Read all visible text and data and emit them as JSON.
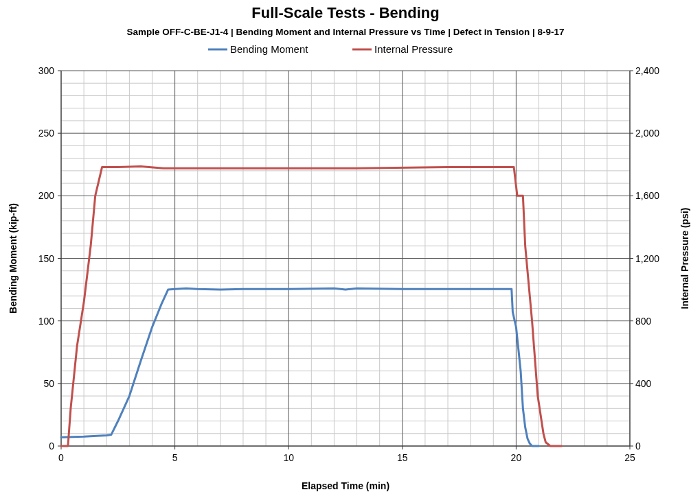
{
  "chart_data": {
    "type": "line",
    "title": "Full-Scale Tests - Bending",
    "subtitle": "Sample OFF-C-BE-J1-4 | Bending Moment and Internal Pressure vs Time | Defect in Tension | 8-9-17",
    "xlabel": "Elapsed Time (min)",
    "ylabel": "Bending Moment (kip-ft)",
    "y2label": "Internal Pressure (psi)",
    "series": [
      {
        "name": "Bending Moment",
        "color": "#4f81bd",
        "x": [
          0,
          1,
          2,
          2.2,
          2.5,
          3,
          3.5,
          4,
          4.4,
          4.7,
          5,
          5.5,
          6,
          7,
          8,
          10,
          12,
          12.5,
          13,
          15,
          17,
          19,
          19.8,
          19.85,
          20,
          20.2,
          20.3,
          20.4,
          20.5,
          20.6,
          20.7,
          21
        ],
        "values": [
          7,
          7.5,
          8.5,
          9,
          20,
          40,
          68,
          95,
          113,
          125,
          125.5,
          126,
          125.5,
          125,
          125.5,
          125.5,
          126,
          125,
          126,
          125.5,
          125.5,
          125.5,
          125.5,
          107,
          95,
          60,
          30,
          15,
          6,
          2,
          0,
          0
        ]
      },
      {
        "name": "Internal Pressure",
        "color": "#c0504d",
        "axis": "y2",
        "x": [
          0,
          0.3,
          0.42,
          0.7,
          1,
          1.3,
          1.5,
          1.8,
          2.5,
          3.5,
          4.5,
          7,
          10,
          13,
          17,
          19.9,
          20.05,
          20.3,
          20.4,
          20.7,
          20.95,
          21.2,
          21.3,
          21.5,
          22
        ],
        "values": [
          0,
          0,
          240,
          640,
          920,
          1280,
          1600,
          1784,
          1784,
          1788,
          1776,
          1776,
          1776,
          1776,
          1784,
          1784,
          1600,
          1600,
          1280,
          800,
          320,
          80,
          24,
          0,
          0
        ]
      }
    ],
    "xlim": [
      0,
      25
    ],
    "xticks": [
      0,
      5,
      10,
      15,
      20,
      25
    ],
    "ylim": [
      0,
      300
    ],
    "yticks": [
      0,
      50,
      100,
      150,
      200,
      250,
      300
    ],
    "y2lim": [
      0,
      2400
    ],
    "y2ticks": [
      {
        "value": 0,
        "label": "0"
      },
      {
        "value": 400,
        "label": "400"
      },
      {
        "value": 800,
        "label": "800"
      },
      {
        "value": 1200,
        "label": "1,200"
      },
      {
        "value": 1600,
        "label": "1,600"
      },
      {
        "value": 2000,
        "label": "2,000"
      },
      {
        "value": 2400,
        "label": "2,400"
      }
    ],
    "grid": true,
    "legend": "top",
    "marker": "none",
    "line_style": "solid"
  }
}
